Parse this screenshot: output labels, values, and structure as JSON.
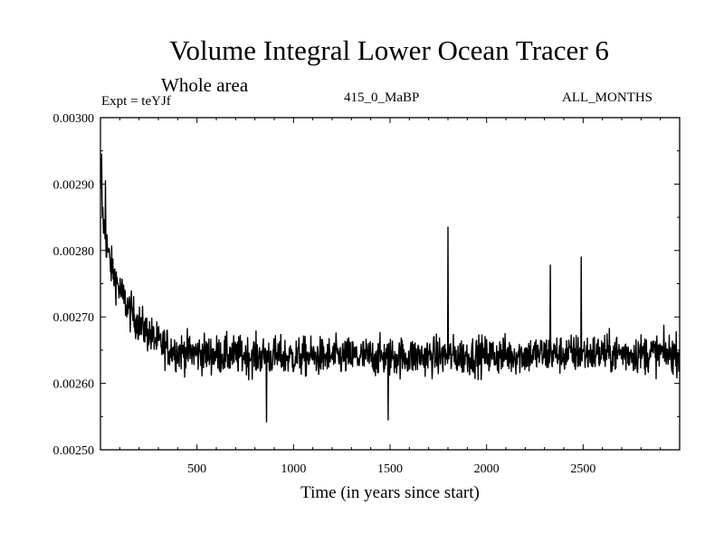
{
  "chart_data": {
    "type": "line",
    "title": "Volume Integral Lower Ocean Tracer 6",
    "subtitle": "Whole area",
    "expt_label": "Expt = teYJf",
    "run_label": "415_0_MaBP",
    "period_label": "ALL_MONTHS",
    "xlabel": "Time (in years since start)",
    "ylabel": "",
    "xlim": [
      0,
      3000
    ],
    "ylim": [
      0.0025,
      0.003
    ],
    "x_ticks": [
      500,
      1000,
      1500,
      2000,
      2500
    ],
    "x_tick_labels": [
      "500",
      "1000",
      "1500",
      "2000",
      "2500"
    ],
    "y_ticks": [
      0.0025,
      0.0026,
      0.0027,
      0.0028,
      0.0029,
      0.003
    ],
    "y_tick_labels": [
      "0.00250",
      "0.00260",
      "0.00270",
      "0.00280",
      "0.00290",
      "0.00300"
    ],
    "grid": false,
    "series": [
      {
        "name": "Volume Integral Lower Ocean Tracer 6",
        "color": "#000000",
        "trend": {
          "x": [
            0,
            20,
            50,
            100,
            150,
            200,
            300,
            400,
            600,
            1000,
            1500,
            2000,
            2500,
            3000
          ],
          "y": [
            0.00289,
            0.00283,
            0.00278,
            0.00274,
            0.00271,
            0.00269,
            0.00266,
            0.002648,
            0.002643,
            0.00264,
            0.00264,
            0.002642,
            0.002645,
            0.002645
          ]
        },
        "noise_amplitude": 5e-05,
        "x_step": 2,
        "notable_points": [
          {
            "x": 5,
            "y": 0.002945
          },
          {
            "x": 25,
            "y": 0.002905
          },
          {
            "x": 860,
            "y": 0.002542
          },
          {
            "x": 1800,
            "y": 0.002835
          },
          {
            "x": 1490,
            "y": 0.002545
          },
          {
            "x": 2490,
            "y": 0.00279
          },
          {
            "x": 2330,
            "y": 0.002778
          }
        ]
      }
    ]
  }
}
